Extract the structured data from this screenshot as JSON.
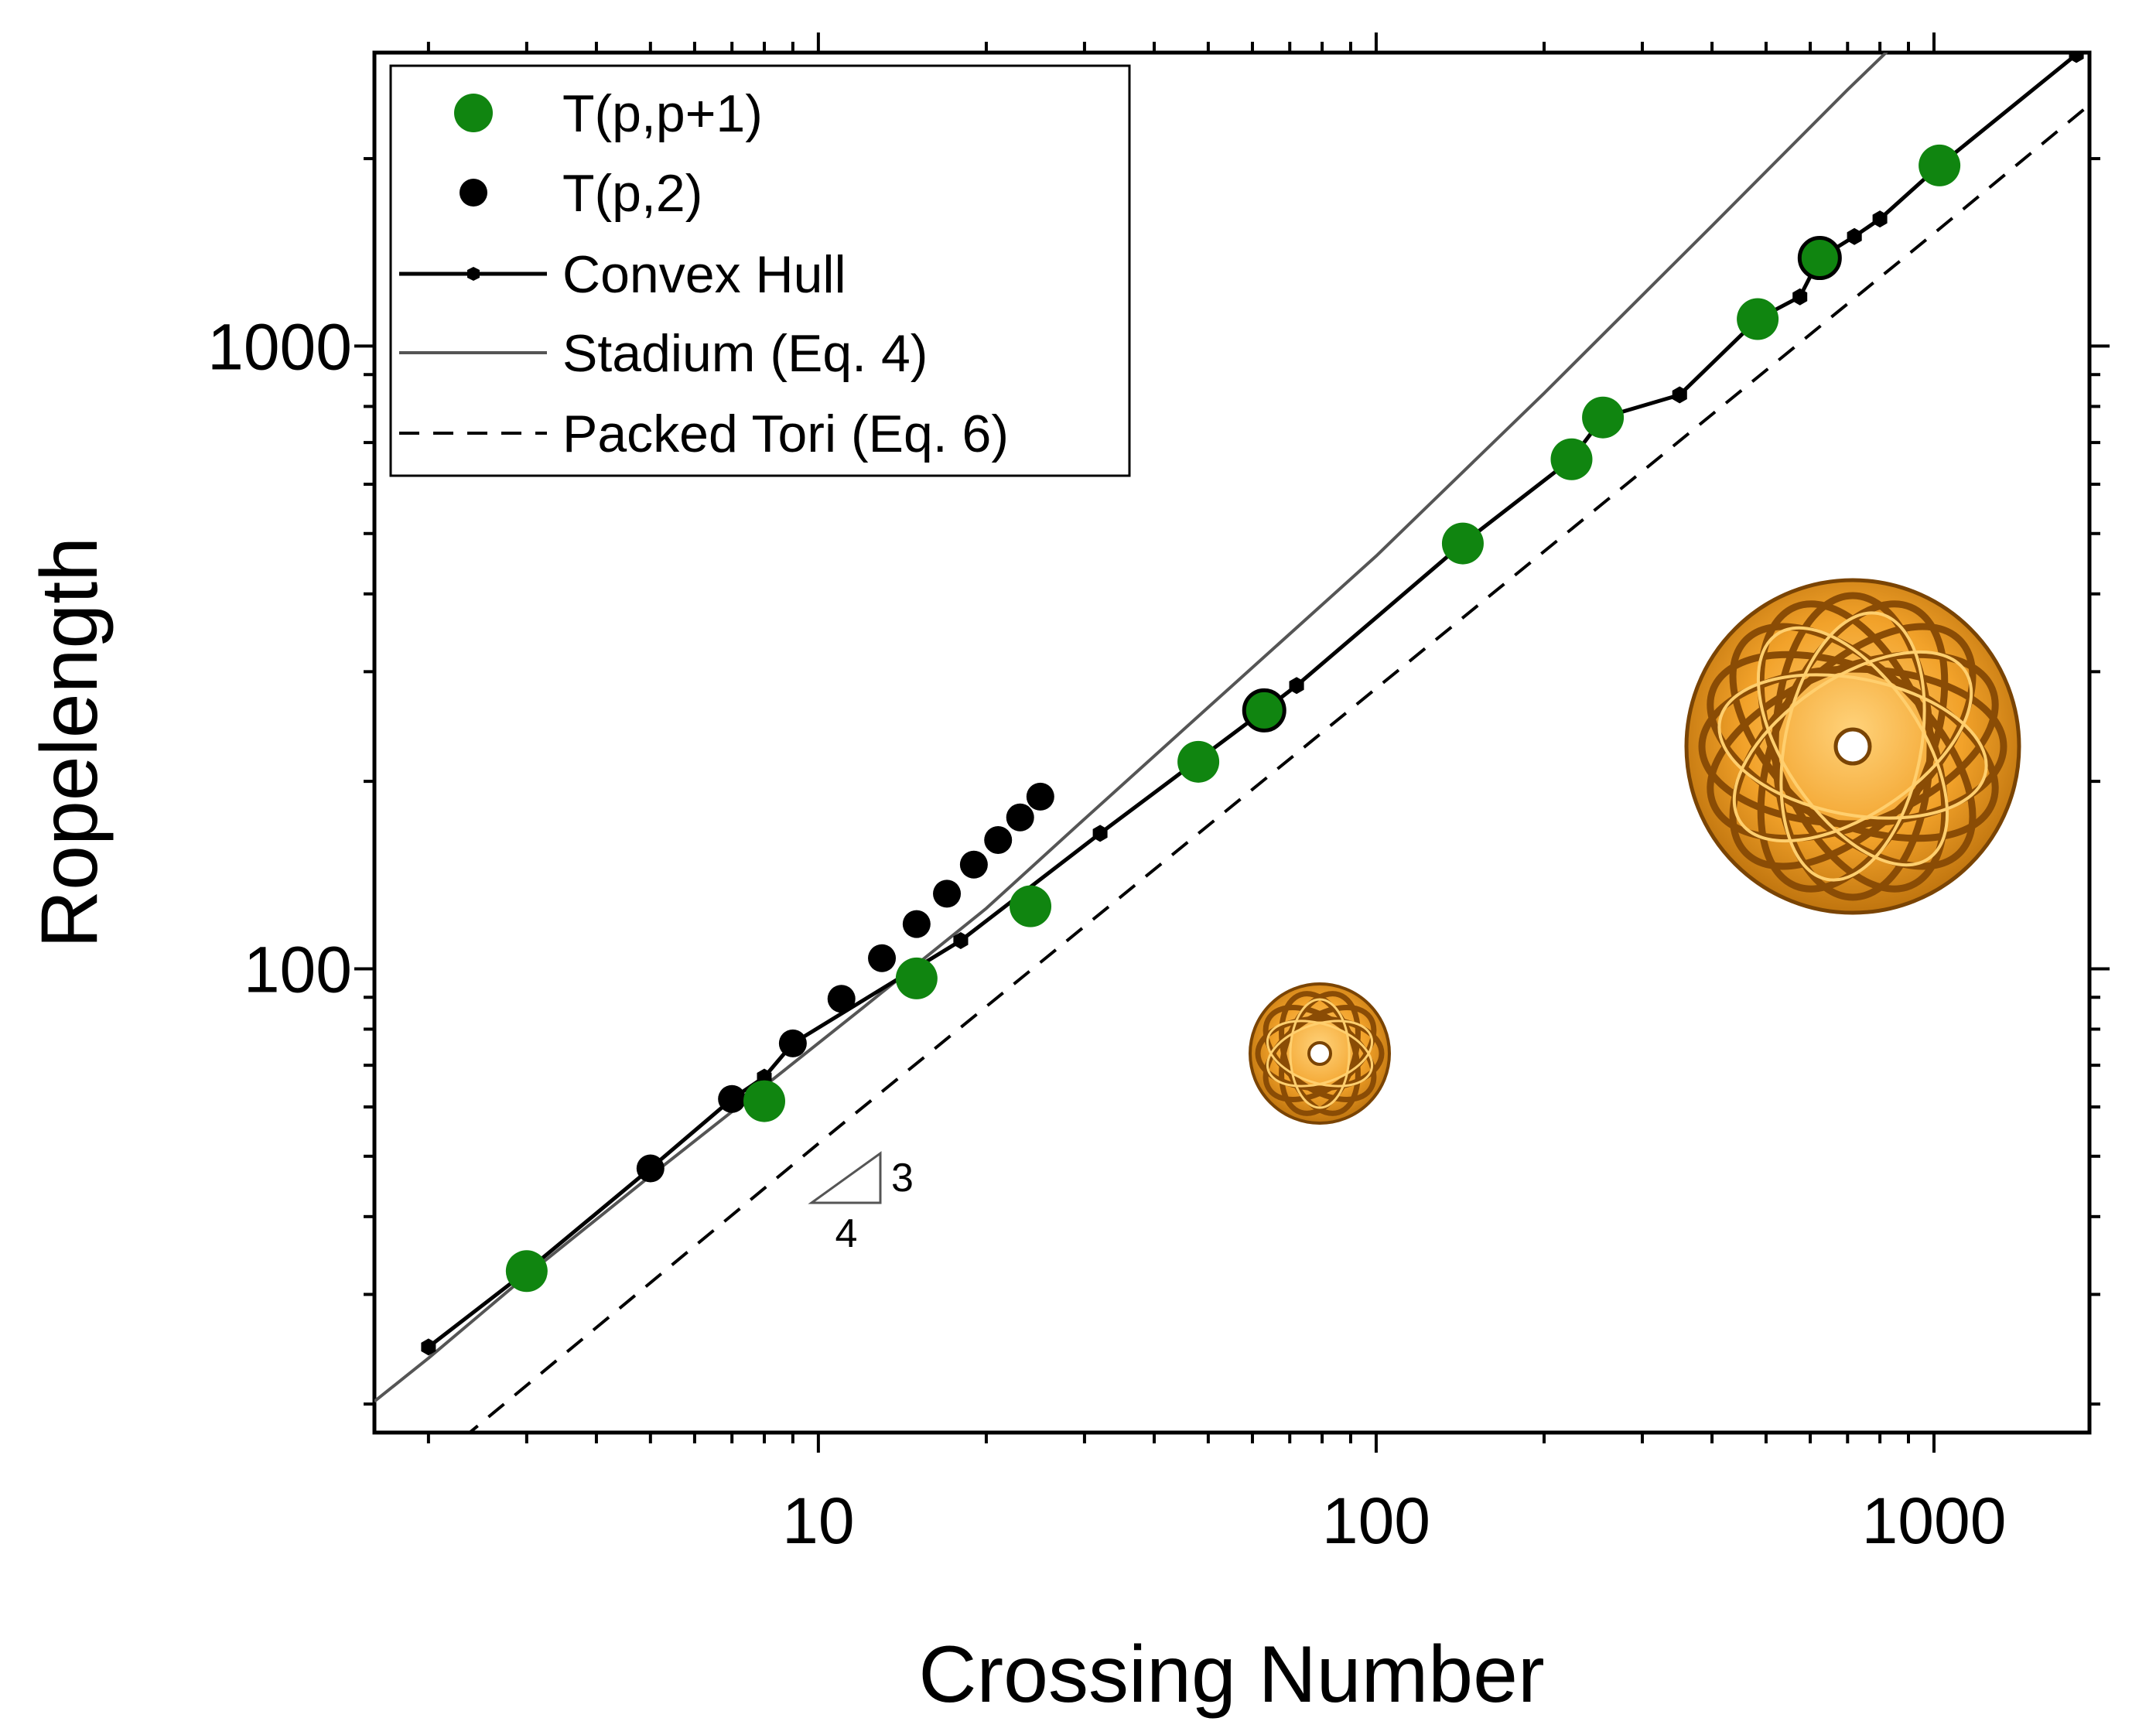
{
  "chart_data": {
    "type": "scatter",
    "xlabel": "Crossing Number",
    "ylabel": "Ropelength",
    "x_scale": "log",
    "y_scale": "log",
    "xlim": [
      1.6,
      1900
    ],
    "ylim": [
      18,
      2960
    ],
    "x_ticks": [
      {
        "value": 10,
        "label": "10"
      },
      {
        "value": 100,
        "label": "100"
      },
      {
        "value": 1000,
        "label": "1000"
      }
    ],
    "y_ticks": [
      {
        "value": 100,
        "label": "100"
      },
      {
        "value": 1000,
        "label": "1000"
      }
    ],
    "grid": false,
    "legend_position": "top-left",
    "series": [
      {
        "name": "T(p,p+1)",
        "style": "marker",
        "color": "#108510",
        "points": [
          [
            3,
            32.7
          ],
          [
            8,
            61.3
          ],
          [
            15,
            96.5
          ],
          [
            24,
            126
          ],
          [
            48,
            215
          ],
          [
            63,
            260
          ],
          [
            143,
            482
          ],
          [
            224,
            658
          ],
          [
            255,
            768
          ],
          [
            483,
            1105
          ],
          [
            624,
            1385
          ],
          [
            1023,
            1950
          ]
        ]
      },
      {
        "name": "T(p,2)",
        "style": "marker",
        "color": "#000000",
        "points": [
          [
            5,
            47.8
          ],
          [
            7,
            61.8
          ],
          [
            9,
            75.9
          ],
          [
            11,
            89.5
          ],
          [
            13,
            104
          ],
          [
            15,
            118
          ],
          [
            17,
            132
          ],
          [
            19,
            147
          ],
          [
            21,
            161
          ],
          [
            23,
            175
          ],
          [
            25,
            189
          ]
        ]
      },
      {
        "name": "Convex Hull",
        "style": "line-marker",
        "color": "#000000",
        "points": [
          [
            2,
            24.7
          ],
          [
            3,
            32.7
          ],
          [
            5,
            47.8
          ],
          [
            7,
            61.8
          ],
          [
            8,
            67
          ],
          [
            9,
            75.9
          ],
          [
            18,
            111
          ],
          [
            32,
            165
          ],
          [
            63,
            260
          ],
          [
            72,
            285
          ],
          [
            143,
            482
          ],
          [
            224,
            658
          ],
          [
            255,
            768
          ],
          [
            350,
            835
          ],
          [
            483,
            1105
          ],
          [
            575,
            1200
          ],
          [
            624,
            1385
          ],
          [
            720,
            1500
          ],
          [
            800,
            1600
          ],
          [
            1023,
            1950
          ],
          [
            1800,
            2940
          ]
        ]
      },
      {
        "name": "Stadium (Eq. 4)",
        "style": "line",
        "color": "#555555",
        "points": [
          [
            1.6,
            20.2
          ],
          [
            2,
            23.7
          ],
          [
            3,
            32.2
          ],
          [
            5,
            46.5
          ],
          [
            8,
            64.8
          ],
          [
            12,
            86.5
          ],
          [
            20,
            125
          ],
          [
            30,
            174
          ],
          [
            50,
            263
          ],
          [
            100,
            460
          ],
          [
            200,
            840
          ],
          [
            400,
            1560
          ],
          [
            700,
            2580
          ],
          [
            930,
            3300
          ]
        ]
      },
      {
        "name": "Packed Tori (Eq. 6)",
        "style": "dashed",
        "color": "#000000",
        "points": [
          [
            2.3,
            17.6
          ],
          [
            10,
            52.4
          ],
          [
            100,
            282
          ],
          [
            1000,
            1517
          ],
          [
            1900,
            2440
          ]
        ]
      }
    ],
    "highlighted_points": [
      [
        63,
        260
      ],
      [
        624,
        1385
      ]
    ],
    "annotations": [
      {
        "type": "slope-triangle",
        "horizontal_label": "4",
        "vertical_label": "3"
      }
    ]
  },
  "images": [
    {
      "name": "small-knot-image",
      "description_icon": "orange-torus-knot"
    },
    {
      "name": "large-knot-image",
      "description_icon": "orange-torus-knot"
    }
  ]
}
